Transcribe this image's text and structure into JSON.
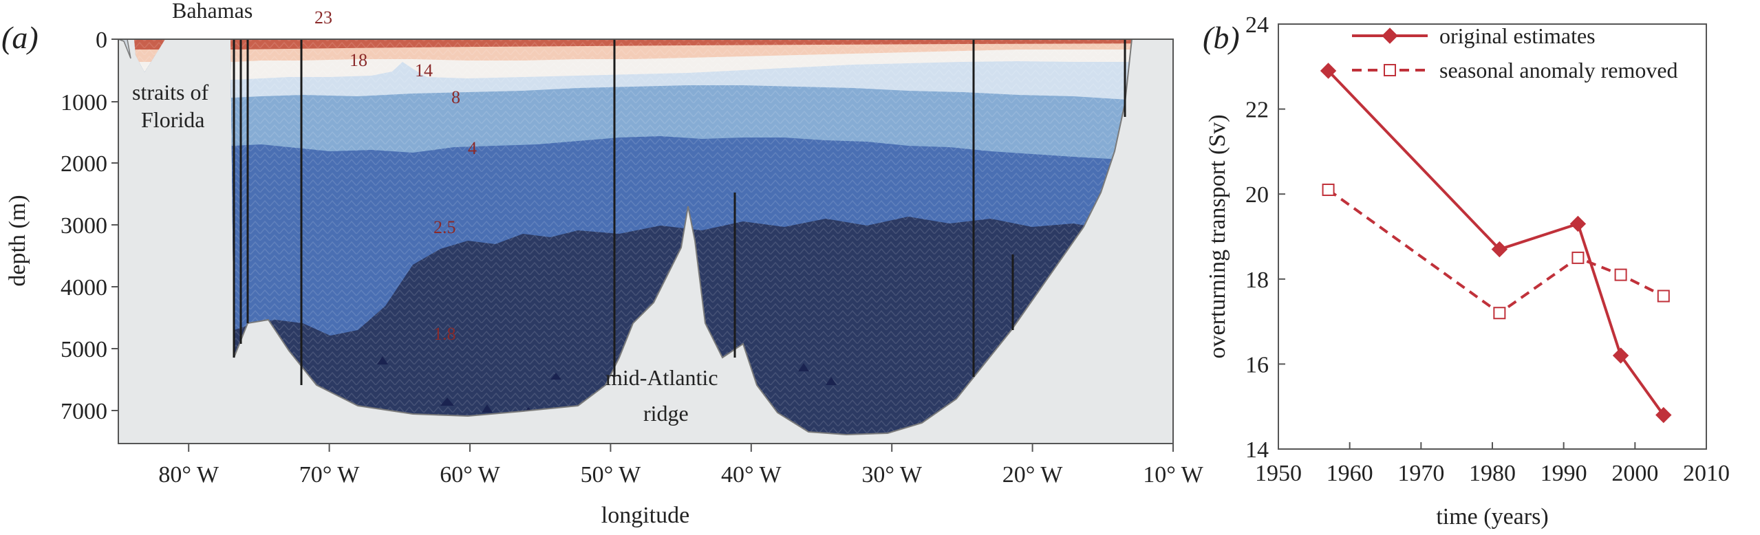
{
  "panel_a": {
    "label": "(a)",
    "annotations": {
      "bahamas": "Bahamas",
      "straits_line1": "straits of",
      "straits_line2": "Florida",
      "ridge_line1": "mid-Atlantic",
      "ridge_line2": "ridge"
    },
    "contour_labels": [
      "23",
      "18",
      "14",
      "8",
      "4",
      "2.5",
      "1.8"
    ]
  },
  "panel_b": {
    "label": "(b)"
  },
  "chart_data": [
    {
      "type": "heatmap",
      "title": "",
      "xlabel": "longitude",
      "ylabel": "depth (m)",
      "x_ticks": [
        "80° W",
        "70° W",
        "60° W",
        "50° W",
        "40° W",
        "30° W",
        "20° W",
        "10° W"
      ],
      "x_tick_values": [
        -80,
        -70,
        -60,
        -50,
        -40,
        -30,
        -20,
        -10
      ],
      "y_ticks": [
        "0",
        "1000",
        "2000",
        "3000",
        "4000",
        "5000",
        "7000"
      ],
      "xlim": [
        -85,
        -10
      ],
      "ylim": [
        0,
        7500
      ],
      "contour_levels": [
        23,
        18,
        14,
        8,
        4,
        2.5,
        1.8
      ],
      "colors": {
        "land": "#e6e8e9",
        "c_warm1": "#8e2a2e",
        "c_warm2": "#c9604c",
        "c_warm3": "#e49a7a",
        "c_warm4": "#f4cdb8",
        "c_neutral": "#f4f1ee",
        "c_cool1": "#d2e0ef",
        "c_cool2": "#86acd4",
        "c_cool3": "#4a6fb3",
        "c_deep": "#2c3a63"
      }
    },
    {
      "type": "line",
      "title": "",
      "xlabel": "time (years)",
      "ylabel": "overturning transport (Sv)",
      "xlim": [
        1950,
        2010
      ],
      "ylim": [
        14,
        24
      ],
      "x_ticks": [
        "1950",
        "1960",
        "1970",
        "1980",
        "1990",
        "2000",
        "2010"
      ],
      "y_ticks": [
        "14",
        "16",
        "18",
        "20",
        "22",
        "24"
      ],
      "legend_position": "top-right",
      "series": [
        {
          "name": "original estimates",
          "marker": "filled-diamond",
          "linestyle": "solid",
          "color": "#c0313a",
          "x": [
            1957,
            1981,
            1992,
            1998,
            2004
          ],
          "y": [
            22.9,
            18.7,
            19.3,
            16.2,
            14.8
          ]
        },
        {
          "name": "seasonal anomaly removed",
          "marker": "open-square",
          "linestyle": "dashed",
          "color": "#c0313a",
          "x": [
            1957,
            1981,
            1992,
            1998,
            2004
          ],
          "y": [
            20.1,
            17.2,
            18.5,
            18.1,
            17.6
          ]
        }
      ]
    }
  ]
}
